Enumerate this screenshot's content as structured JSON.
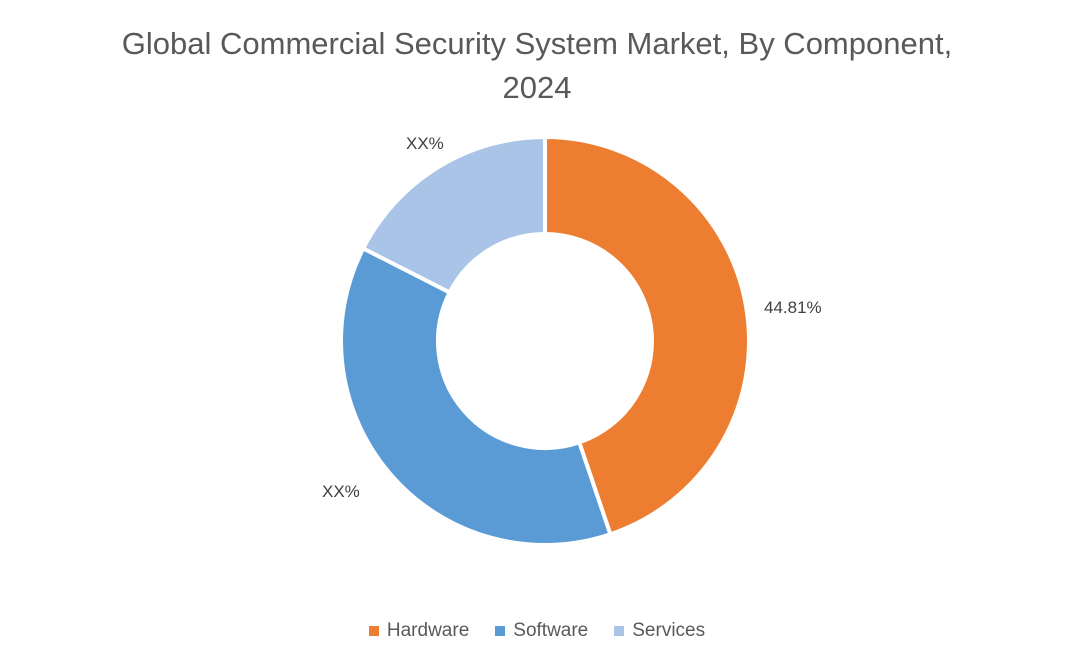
{
  "title": {
    "line1": "Global Commercial Security System Market, By Component,",
    "line2": "2024"
  },
  "chart_data": {
    "type": "pie",
    "subtype": "donut",
    "title": "Global Commercial Security System Market, By Component, 2024",
    "categories": [
      "Hardware",
      "Software",
      "Services"
    ],
    "values": [
      44.81,
      37.69,
      17.5
    ],
    "labels": [
      "44.81%",
      "XX%",
      "XX%"
    ],
    "colors": [
      "#ED7D31",
      "#5B9BD5",
      "#A9C4E6"
    ],
    "legend_position": "bottom",
    "start_angle_deg": 0,
    "direction": "clockwise"
  },
  "legend": [
    {
      "label": "Hardware",
      "color": "#ED7D31"
    },
    {
      "label": "Software",
      "color": "#5B9BD5"
    },
    {
      "label": "Services",
      "color": "#A9C4E6"
    }
  ]
}
